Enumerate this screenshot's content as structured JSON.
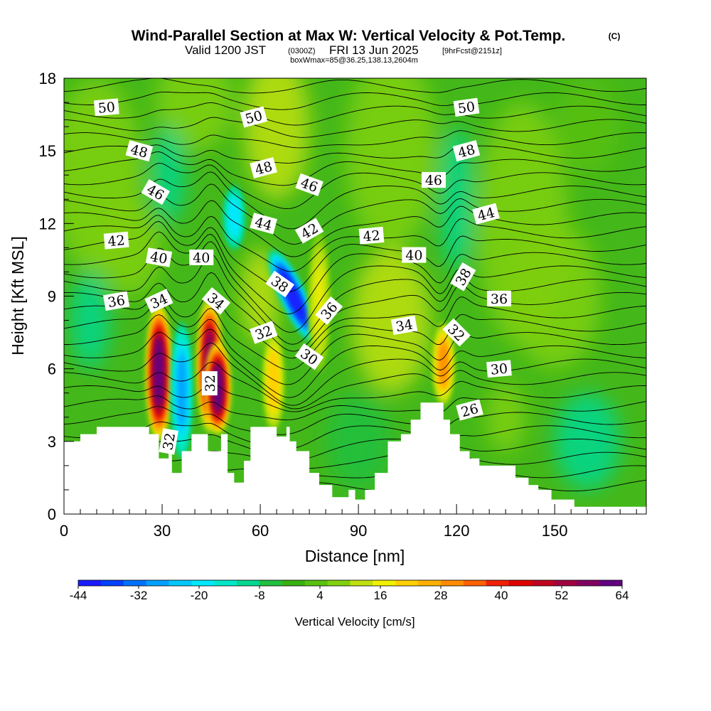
{
  "title": {
    "main": "Wind-Parallel Section at Max W: Vertical Velocity & Pot.Temp.",
    "copyright": "(C)",
    "line2_a": "Valid 1200 JST",
    "line2_b": "(0300Z)",
    "line2_c": "FRI 13 Jun 2025",
    "line2_d": "[9hrFcst@2151z]",
    "line3": "boxWmax=85@36.25,138.13,2604m"
  },
  "chart_data": {
    "type": "heatmap",
    "title": "Wind-Parallel Section at Max W: Vertical Velocity & Pot.Temp.",
    "subtitle": "Valid 1200 JST (0300Z) FRI 13 Jun 2025 [9hrFcst@2151z]",
    "xlabel": "Distance [nm]",
    "ylabel": "Height [Kft MSL]",
    "xlim": [
      0,
      178
    ],
    "ylim": [
      0,
      18
    ],
    "x_ticks": [
      0,
      30,
      60,
      90,
      120,
      150
    ],
    "y_ticks": [
      0,
      3,
      6,
      9,
      12,
      15,
      18
    ],
    "colorbar": {
      "title": "Vertical Velocity [cm/s]",
      "tick_labels": [
        -44,
        -32,
        -20,
        -8,
        4,
        16,
        28,
        40,
        52,
        64
      ],
      "range": [
        -44,
        64
      ],
      "colors": [
        "#1a1aff",
        "#0040ff",
        "#0070ff",
        "#00a0ff",
        "#00c8ff",
        "#00e8ff",
        "#00e8c8",
        "#00d890",
        "#20c040",
        "#38b010",
        "#58c010",
        "#80d010",
        "#c0e010",
        "#f0f000",
        "#ffd000",
        "#ffb000",
        "#ff8c00",
        "#ff6000",
        "#f02000",
        "#e00000",
        "#c00020",
        "#a00040",
        "#800060",
        "#600080"
      ]
    },
    "velocity_features": [
      {
        "x": 29,
        "y_bottom": 3.2,
        "y_top": 8.5,
        "w": 62,
        "kind": "updraft"
      },
      {
        "x": 36,
        "y_bottom": 2.4,
        "y_top": 7.8,
        "w": -28,
        "kind": "downdraft"
      },
      {
        "x": 44.5,
        "y_bottom": 3.5,
        "y_top": 8.8,
        "w": 55,
        "kind": "updraft"
      },
      {
        "x": 47,
        "y_bottom": 3.4,
        "y_top": 7.0,
        "w": 64,
        "kind": "updraft"
      },
      {
        "x": 64,
        "y_bottom": 3.5,
        "y_top": 7.5,
        "w": 22,
        "kind": "updraft"
      },
      {
        "x": 70,
        "y_bottom": 7.0,
        "y_top": 11.0,
        "w": -44,
        "kind": "downdraft"
      },
      {
        "x": 52,
        "y_bottom": 11.0,
        "y_top": 13.5,
        "w": -20,
        "kind": "downdraft"
      },
      {
        "x": 78,
        "y_bottom": 6.0,
        "y_top": 11.5,
        "w": 16,
        "kind": "updraft"
      },
      {
        "x": 116,
        "y_bottom": 4.6,
        "y_top": 7.8,
        "w": 30,
        "kind": "updraft"
      }
    ],
    "contour_labels": [
      {
        "value": "50",
        "x": 13,
        "y": 16.8,
        "angle": -5
      },
      {
        "value": "50",
        "x": 58,
        "y": 16.4,
        "angle": -15
      },
      {
        "value": "50",
        "x": 123,
        "y": 16.8,
        "angle": -8
      },
      {
        "value": "48",
        "x": 23,
        "y": 15.0,
        "angle": 15
      },
      {
        "value": "48",
        "x": 61,
        "y": 14.3,
        "angle": -15
      },
      {
        "value": "48",
        "x": 123,
        "y": 15.0,
        "angle": -15
      },
      {
        "value": "46",
        "x": 28,
        "y": 13.3,
        "angle": 30
      },
      {
        "value": "46",
        "x": 75,
        "y": 13.6,
        "angle": 20
      },
      {
        "value": "46",
        "x": 113,
        "y": 13.8,
        "angle": 0
      },
      {
        "value": "44",
        "x": 61,
        "y": 12.0,
        "angle": 15
      },
      {
        "value": "44",
        "x": 129,
        "y": 12.4,
        "angle": -15
      },
      {
        "value": "42",
        "x": 16,
        "y": 11.3,
        "angle": -5
      },
      {
        "value": "42",
        "x": 75,
        "y": 11.7,
        "angle": -30
      },
      {
        "value": "42",
        "x": 94,
        "y": 11.5,
        "angle": -5
      },
      {
        "value": "40",
        "x": 29,
        "y": 10.6,
        "angle": 10
      },
      {
        "value": "40",
        "x": 42,
        "y": 10.6,
        "angle": 0
      },
      {
        "value": "40",
        "x": 107,
        "y": 10.7,
        "angle": 0
      },
      {
        "value": "38",
        "x": 66,
        "y": 9.5,
        "angle": 35
      },
      {
        "value": "38",
        "x": 122,
        "y": 9.8,
        "angle": -60
      },
      {
        "value": "36",
        "x": 16,
        "y": 8.8,
        "angle": -10
      },
      {
        "value": "36",
        "x": 81,
        "y": 8.4,
        "angle": -50
      },
      {
        "value": "36",
        "x": 133,
        "y": 8.9,
        "angle": 0
      },
      {
        "value": "34",
        "x": 29,
        "y": 8.8,
        "angle": -25
      },
      {
        "value": "34",
        "x": 46.5,
        "y": 8.8,
        "angle": 40
      },
      {
        "value": "34",
        "x": 104,
        "y": 7.8,
        "angle": -10
      },
      {
        "value": "32",
        "x": 61,
        "y": 7.5,
        "angle": -20
      },
      {
        "value": "32",
        "x": 120,
        "y": 7.5,
        "angle": 45
      },
      {
        "value": "32",
        "x": 44.5,
        "y": 5.4,
        "angle": -90
      },
      {
        "value": "32",
        "x": 32,
        "y": 3.0,
        "angle": -80
      },
      {
        "value": "30",
        "x": 75,
        "y": 6.5,
        "angle": 35
      },
      {
        "value": "30",
        "x": 133,
        "y": 6.0,
        "angle": -5
      },
      {
        "value": "26",
        "x": 124,
        "y": 4.3,
        "angle": -15
      }
    ]
  }
}
